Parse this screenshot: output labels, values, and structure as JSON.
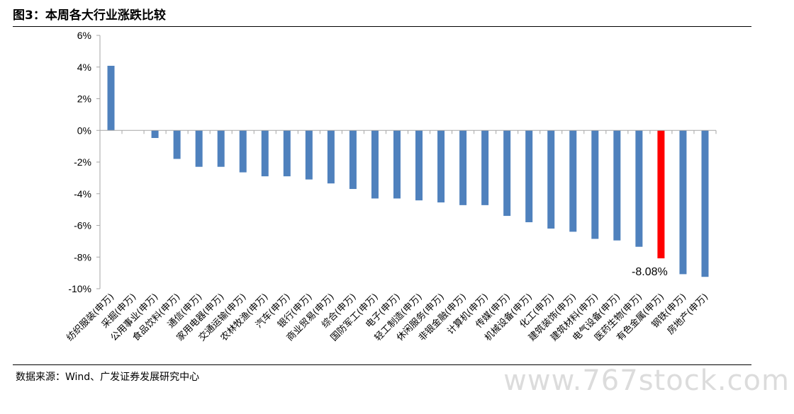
{
  "figure_title": "图3：本周各大行业涨跌比较",
  "source_text": "数据来源：Wind、广发证券发展研究中心",
  "watermark": "www.767stock.com",
  "chart_data": {
    "type": "bar",
    "title": "",
    "xlabel": "",
    "ylabel": "",
    "ylim": [
      -10,
      6
    ],
    "yticks": [
      6,
      4,
      2,
      0,
      -2,
      -4,
      -6,
      -8,
      -10
    ],
    "ytick_labels": [
      "6%",
      "4%",
      "2%",
      "0%",
      "-2%",
      "-4%",
      "-6%",
      "-8%",
      "-10%"
    ],
    "categories": [
      "纺织服装(申万)",
      "采掘(申万)",
      "公用事业(申万)",
      "食品饮料(申万)",
      "通信(申万)",
      "家用电器(申万)",
      "交通运输(申万)",
      "农林牧渔(申万)",
      "汽车(申万)",
      "银行(申万)",
      "商业贸易(申万)",
      "综合(申万)",
      "国防军工(申万)",
      "电子(申万)",
      "轻工制造(申万)",
      "休闲服务(申万)",
      "非银金融(申万)",
      "计算机(申万)",
      "传媒(申万)",
      "机械设备(申万)",
      "化工(申万)",
      "建筑装饰(申万)",
      "建筑材料(申万)",
      "电气设备(申万)",
      "医药生物(申万)",
      "有色金属(申万)",
      "钢铁(申万)",
      "房地产(申万)"
    ],
    "values": [
      4.08,
      0.0,
      -0.48,
      -1.8,
      -2.3,
      -2.3,
      -2.65,
      -2.9,
      -2.9,
      -3.1,
      -3.35,
      -3.7,
      -4.3,
      -4.3,
      -4.42,
      -4.55,
      -4.72,
      -4.72,
      -5.4,
      -5.8,
      -6.2,
      -6.4,
      -6.85,
      -6.95,
      -7.35,
      -8.08,
      -9.08,
      -9.25
    ],
    "highlight_index": 25,
    "highlight_label": "-8.08%",
    "colors": {
      "bar": "#4f81bd",
      "highlight": "#ff0000",
      "axis": "#a6a6a6"
    },
    "grid": false,
    "legend": "none"
  }
}
